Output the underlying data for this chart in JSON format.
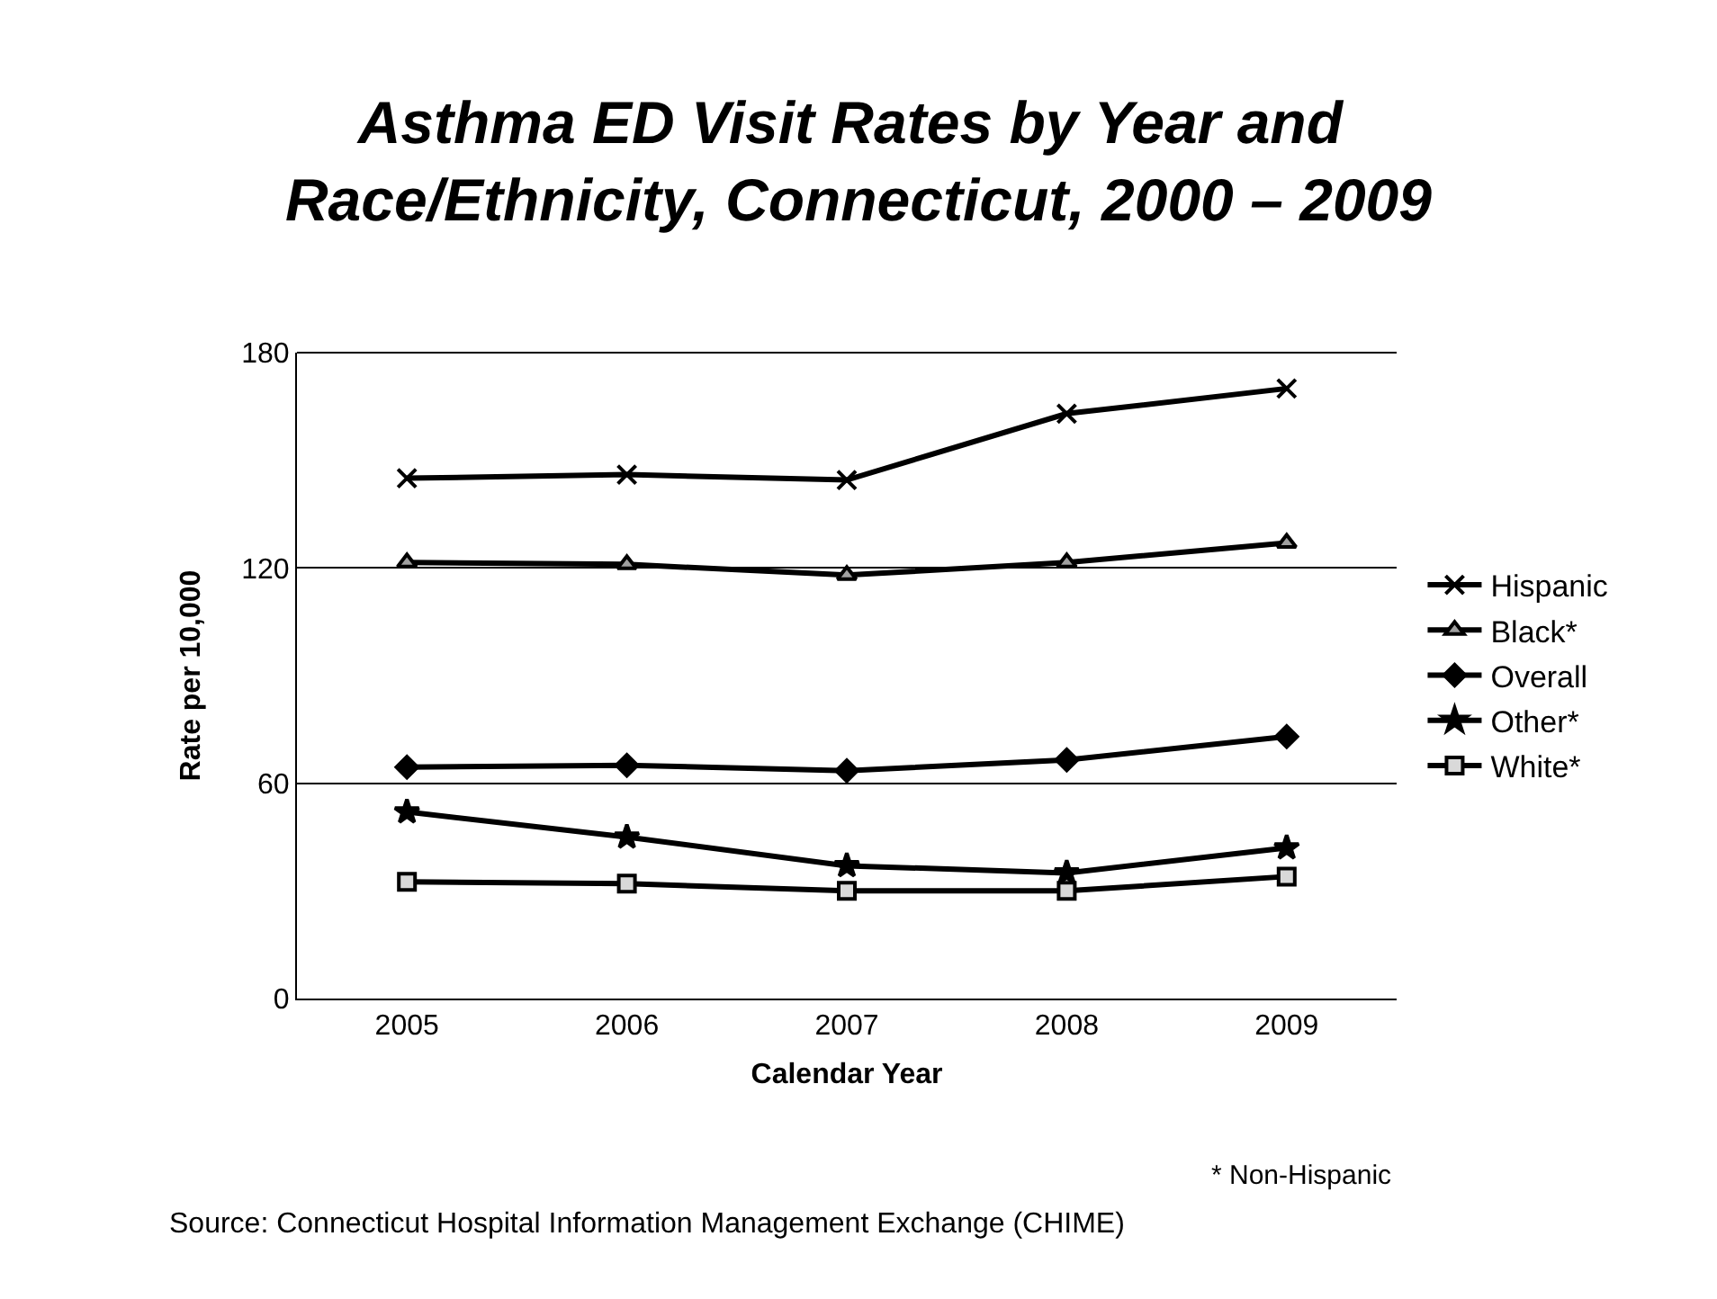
{
  "chart_data": {
    "type": "line",
    "title": "Asthma ED Visit Rates by Year and Race/Ethnicity, Connecticut, 2000 – 2009",
    "xlabel": "Calendar Year",
    "ylabel": "Rate per 10,000",
    "categories": [
      "2005",
      "2006",
      "2007",
      "2008",
      "2009"
    ],
    "series": [
      {
        "name": "Hispanic",
        "color": "#000000",
        "marker": "cross",
        "values": [
          145,
          146,
          144.5,
          163,
          170
        ]
      },
      {
        "name": "Black*",
        "color": "#000000",
        "marker": "triangle",
        "values": [
          121.5,
          121,
          118,
          121.5,
          127
        ]
      },
      {
        "name": "Overall",
        "color": "#000000",
        "marker": "diamond",
        "values": [
          64.5,
          65,
          63.5,
          66.5,
          73
        ]
      },
      {
        "name": "Other*",
        "color": "#000000",
        "marker": "star",
        "values": [
          52,
          45,
          37,
          35,
          42
        ]
      },
      {
        "name": "White*",
        "color": "#000000",
        "marker": "square",
        "values": [
          32.5,
          32,
          30,
          30,
          34
        ]
      }
    ],
    "ylim": [
      0,
      180
    ],
    "yticks": [
      0,
      60,
      120,
      180
    ],
    "grid": "y",
    "legend": "right",
    "line_style": "solid",
    "annotations": [
      "* Non-Hispanic",
      "Source: Connecticut Hospital Information Management Exchange (CHIME)"
    ]
  }
}
